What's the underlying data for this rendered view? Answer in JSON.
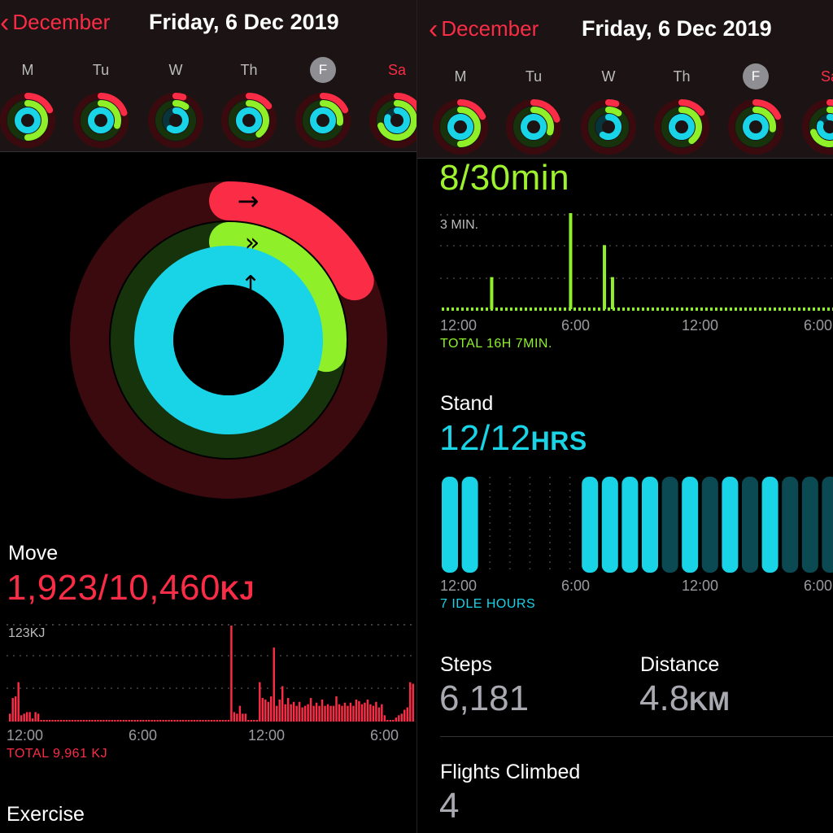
{
  "header": {
    "back_label": "December",
    "date_title": "Friday, 6 Dec 2019",
    "weekdays": [
      "M",
      "Tu",
      "W",
      "Th",
      "F",
      "Sa"
    ],
    "weekdays_right": [
      "M",
      "Tu",
      "W",
      "Th",
      "F",
      "Sa"
    ]
  },
  "rings": {
    "move_progress": 0.18,
    "exercise_progress": 0.27,
    "stand_progress": 1.0
  },
  "move": {
    "title": "Move",
    "value": "1,923/10,460",
    "unit": "KJ",
    "max_label": "123KJ",
    "axis": [
      "12:00",
      "6:00",
      "12:00",
      "6:00"
    ],
    "total": "TOTAL 9,961 KJ"
  },
  "exercise": {
    "title": "Exercise",
    "value": "8/30min",
    "max_label": "3 MIN.",
    "axis": [
      "12:00",
      "6:00",
      "12:00",
      "6:00"
    ],
    "total": "TOTAL 16H 7MIN."
  },
  "stand": {
    "title": "Stand",
    "value": "12/12",
    "unit": "HRS",
    "axis": [
      "12:00",
      "6:00",
      "12:00",
      "6:00"
    ],
    "total": "7 IDLE HOURS"
  },
  "steps": {
    "title": "Steps",
    "value": "6,181"
  },
  "distance": {
    "title": "Distance",
    "value": "4.8",
    "unit": "KM"
  },
  "flights": {
    "title": "Flights Climbed",
    "value": "4"
  },
  "colors": {
    "move": "#fa2c46",
    "exercise": "#8ff02a",
    "stand": "#19d3e6"
  },
  "chart_data": [
    {
      "type": "bar",
      "title": "Move",
      "ylabel": "KJ",
      "ylim": [
        0,
        123
      ],
      "x": "hours 0-24",
      "values": [
        10,
        30,
        32,
        50,
        8,
        10,
        12,
        12,
        4,
        12,
        10,
        2,
        2,
        2,
        2,
        2,
        2,
        2,
        2,
        2,
        2,
        2,
        2,
        2,
        2,
        2,
        2,
        2,
        2,
        2,
        2,
        2,
        2,
        2,
        2,
        2,
        2,
        2,
        2,
        2,
        2,
        2,
        2,
        2,
        2,
        2,
        2,
        2,
        2,
        2,
        2,
        2,
        2,
        2,
        2,
        2,
        2,
        2,
        2,
        2,
        2,
        2,
        2,
        2,
        2,
        2,
        2,
        2,
        2,
        2,
        2,
        2,
        2,
        2,
        2,
        2,
        2,
        2,
        122,
        12,
        10,
        20,
        10,
        10,
        2,
        2,
        2,
        2,
        50,
        30,
        28,
        25,
        32,
        94,
        20,
        28,
        45,
        22,
        30,
        22,
        25,
        20,
        25,
        18,
        20,
        22,
        30,
        20,
        24,
        20,
        28,
        20,
        22,
        20,
        20,
        32,
        22,
        20,
        24,
        20,
        24,
        20,
        28,
        26,
        22,
        24,
        28,
        22,
        20,
        25,
        18,
        22,
        8,
        2,
        2,
        2,
        5,
        8,
        10,
        15,
        18,
        50,
        48
      ],
      "total": "TOTAL 9,961 KJ"
    },
    {
      "type": "bar",
      "title": "Exercise",
      "ylabel": "MIN.",
      "ylim": [
        0,
        3
      ],
      "spikes_hours": [
        3,
        7.9,
        10,
        10.5
      ],
      "spike_values": [
        1,
        3,
        2,
        1
      ],
      "total": "TOTAL 16H 7MIN."
    },
    {
      "type": "bar",
      "title": "Stand",
      "hours_active": [
        0,
        1,
        7,
        8,
        9,
        10,
        12,
        14,
        16
      ],
      "hours_dim": [
        11,
        13,
        15,
        17,
        18,
        19
      ]
    }
  ]
}
